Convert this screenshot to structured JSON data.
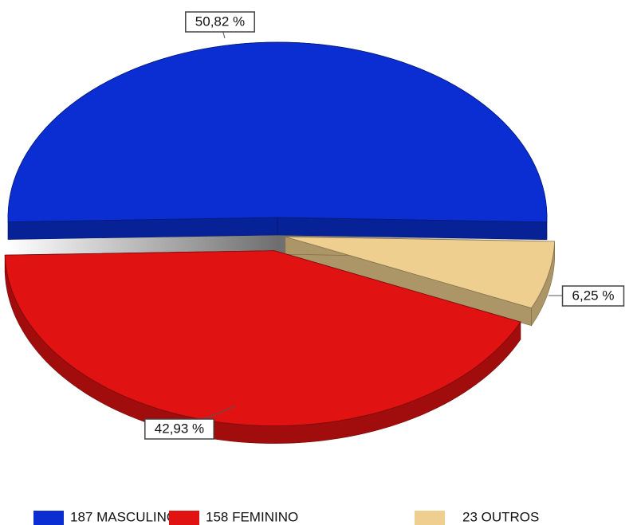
{
  "chart_data": {
    "type": "pie",
    "categories": [
      "187 MASCULINO",
      "158 FEMININO",
      "23 OUTROS"
    ],
    "values": [
      50.82,
      42.93,
      6.25
    ],
    "value_labels": [
      "50,82 %",
      "42,93 %",
      "6,25 %"
    ],
    "colors": [
      "#0a2ed2",
      "#e01212",
      "#efcf8f"
    ]
  }
}
